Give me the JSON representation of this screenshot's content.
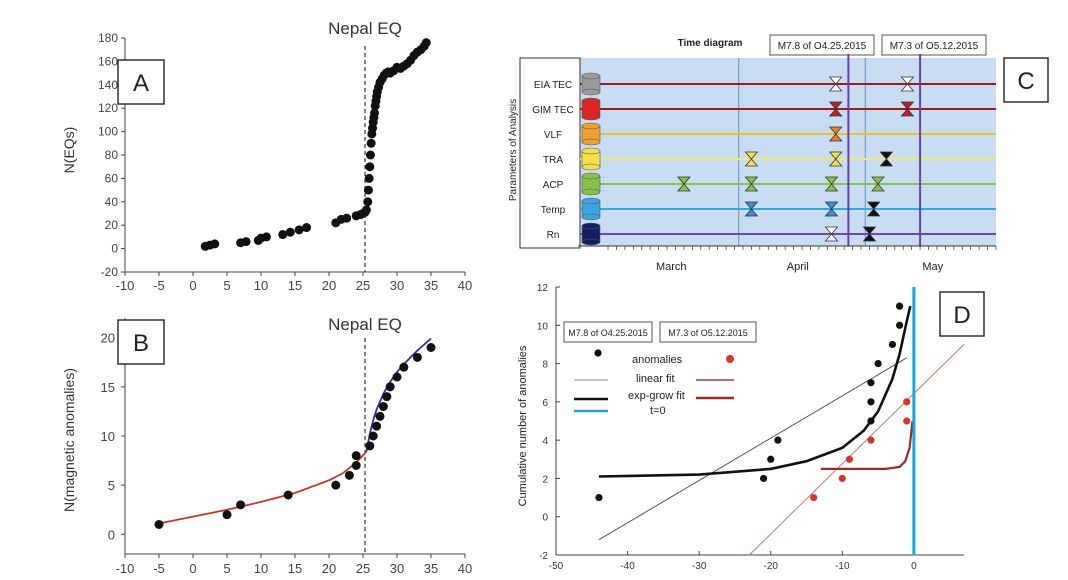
{
  "chart_data": [
    {
      "id": "A",
      "type": "scatter",
      "panel_label": "A",
      "title": "Nepal EQ",
      "xlabel": "",
      "ylabel": "N(EQs)",
      "xlim": [
        -10,
        40
      ],
      "ylim": [
        -20,
        180
      ],
      "xticks": [
        -10,
        -5,
        0,
        5,
        10,
        15,
        20,
        25,
        30,
        35,
        40
      ],
      "yticks": [
        -20,
        0,
        20,
        40,
        60,
        80,
        100,
        120,
        140,
        160,
        180
      ],
      "event_line_x": 25.3,
      "points": [
        [
          1.8,
          2
        ],
        [
          2.5,
          3
        ],
        [
          3.2,
          4
        ],
        [
          7,
          5
        ],
        [
          7.8,
          6
        ],
        [
          9.6,
          7
        ],
        [
          10,
          9
        ],
        [
          10.8,
          10
        ],
        [
          13.2,
          12
        ],
        [
          14.3,
          14
        ],
        [
          15.6,
          16
        ],
        [
          16.7,
          18
        ],
        [
          21,
          22
        ],
        [
          21.8,
          25
        ],
        [
          22.6,
          26
        ],
        [
          24,
          28
        ],
        [
          24.6,
          29
        ],
        [
          25,
          30
        ],
        [
          25.3,
          31
        ],
        [
          25.5,
          33
        ],
        [
          25.7,
          40
        ],
        [
          25.8,
          50
        ],
        [
          25.9,
          60
        ],
        [
          26,
          70
        ],
        [
          26.1,
          80
        ],
        [
          26.2,
          90
        ],
        [
          26.3,
          98
        ],
        [
          26.4,
          103
        ],
        [
          26.5,
          108
        ],
        [
          26.6,
          112
        ],
        [
          26.7,
          116
        ],
        [
          26.8,
          122
        ],
        [
          26.9,
          126
        ],
        [
          27,
          130
        ],
        [
          27.1,
          134
        ],
        [
          27.3,
          138
        ],
        [
          27.5,
          142
        ],
        [
          27.8,
          145
        ],
        [
          28.1,
          148
        ],
        [
          28.4,
          150
        ],
        [
          28.7,
          151
        ],
        [
          29,
          150
        ],
        [
          29.5,
          152
        ],
        [
          30,
          155
        ],
        [
          30.5,
          154
        ],
        [
          31,
          156
        ],
        [
          31.5,
          158
        ],
        [
          32,
          161
        ],
        [
          32.5,
          165
        ],
        [
          33,
          168
        ],
        [
          33.5,
          170
        ],
        [
          34,
          173
        ],
        [
          34.3,
          176
        ]
      ]
    },
    {
      "id": "B",
      "type": "scatter",
      "panel_label": "B",
      "title": "Nepal EQ",
      "xlabel": "",
      "ylabel": "N(magnetic anomalies)",
      "xlim": [
        -10,
        40
      ],
      "ylim": [
        -2,
        22
      ],
      "xticks": [
        -10,
        -5,
        0,
        5,
        10,
        15,
        20,
        25,
        30,
        35,
        40
      ],
      "yticks": [
        0,
        5,
        10,
        15,
        20
      ],
      "event_line_x": 25.3,
      "points": [
        [
          -5,
          1
        ],
        [
          5,
          2
        ],
        [
          7,
          3
        ],
        [
          14,
          4
        ],
        [
          21,
          5
        ],
        [
          23,
          6
        ],
        [
          24,
          7
        ],
        [
          24,
          8
        ],
        [
          26,
          9
        ],
        [
          26.5,
          10
        ],
        [
          27,
          11
        ],
        [
          27.5,
          12
        ],
        [
          28,
          13
        ],
        [
          28.5,
          14
        ],
        [
          29,
          15
        ],
        [
          30,
          16
        ],
        [
          31,
          17
        ],
        [
          33,
          18
        ],
        [
          35,
          19
        ]
      ],
      "fit_red": {
        "color": "#c0392b",
        "points": [
          [
            -5,
            1.1
          ],
          [
            0,
            1.8
          ],
          [
            5,
            2.5
          ],
          [
            10,
            3.3
          ],
          [
            15,
            4.2
          ],
          [
            20,
            5.5
          ],
          [
            22,
            6.2
          ],
          [
            24,
            7.3
          ],
          [
            25.5,
            8.4
          ]
        ]
      },
      "fit_blue": {
        "color": "#2e2ea8",
        "points": [
          [
            25.5,
            8.4
          ],
          [
            26,
            10.2
          ],
          [
            26.5,
            11.6
          ],
          [
            27,
            12.7
          ],
          [
            28,
            14.3
          ],
          [
            29,
            15.5
          ],
          [
            30,
            16.5
          ],
          [
            31,
            17.3
          ],
          [
            32,
            18
          ],
          [
            33,
            18.7
          ],
          [
            34,
            19.3
          ],
          [
            35,
            19.9
          ]
        ]
      }
    },
    {
      "id": "C",
      "type": "timeline",
      "panel_label": "C",
      "title": "Time diagram",
      "ylabel": "Parameters of Analysis",
      "event_labels": [
        "M7.8 of O4.25.2015",
        "M7.3 of O5.12.2015"
      ],
      "months": [
        "March",
        "April",
        "May"
      ],
      "rows": [
        {
          "name": "EIA TEC",
          "color": "#9a9a9a",
          "line_color": "#9b1c1c",
          "markers": [
            {
              "day": 55,
              "fill": "#ffffff"
            },
            {
              "day": 72,
              "fill": "#ffffff"
            }
          ]
        },
        {
          "name": "GIM TEC",
          "color": "#e02424",
          "line_color": "#9b1c1c",
          "markers": [
            {
              "day": 55,
              "fill": "#c0202a"
            },
            {
              "day": 72,
              "fill": "#c0202a"
            }
          ]
        },
        {
          "name": "VLF",
          "color": "#f0a030",
          "line_color": "#f0c020",
          "markers": [
            {
              "day": 55,
              "fill": "#e08030"
            }
          ]
        },
        {
          "name": "TRA",
          "color": "#f4e04a",
          "line_color": "#f4ea60",
          "markers": [
            {
              "day": 35,
              "fill": "#f4e04a"
            },
            {
              "day": 55,
              "fill": "#f4e04a"
            },
            {
              "day": 67,
              "fill": "#111111"
            }
          ]
        },
        {
          "name": "ACP",
          "color": "#8ac04a",
          "line_color": "#8ac04a",
          "markers": [
            {
              "day": 19,
              "fill": "#8ac04a"
            },
            {
              "day": 35,
              "fill": "#8ac04a"
            },
            {
              "day": 54,
              "fill": "#8ac04a"
            },
            {
              "day": 65,
              "fill": "#8ac04a"
            }
          ]
        },
        {
          "name": "Temp",
          "color": "#3ba4dc",
          "line_color": "#3ba4dc",
          "markers": [
            {
              "day": 35,
              "fill": "#3b8ee0"
            },
            {
              "day": 54,
              "fill": "#3b8ee0"
            },
            {
              "day": 64,
              "fill": "#111111"
            }
          ]
        },
        {
          "name": "Rn",
          "color": "#14205e",
          "line_color": "#7048b0",
          "markers": [
            {
              "day": 54,
              "fill": "#ffffff"
            },
            {
              "day": 63,
              "fill": "#111111"
            }
          ]
        }
      ],
      "event_days": [
        58,
        75
      ]
    },
    {
      "id": "D",
      "type": "scatter",
      "panel_label": "D",
      "xlabel": "",
      "ylabel": "Cumulative number of anomalies",
      "xlim": [
        -50,
        7
      ],
      "ylim": [
        -2,
        12
      ],
      "xticks": [
        -50,
        -40,
        -30,
        -20,
        -10,
        0
      ],
      "yticks": [
        -2,
        0,
        2,
        4,
        6,
        8,
        10,
        12
      ],
      "event_labels": [
        "M7.8 of O4.25.2015",
        "M7.3 of O5.12.2015"
      ],
      "legend": {
        "anomalies": "anomalies",
        "linear_fit": "linear  fit",
        "exp_fit": "exp-grow fit",
        "t0": "t=0"
      },
      "black_points": [
        [
          -44,
          1
        ],
        [
          -21,
          2
        ],
        [
          -20,
          3
        ],
        [
          -19,
          4
        ],
        [
          -6,
          5
        ],
        [
          -6,
          6
        ],
        [
          -6,
          7
        ],
        [
          -5,
          8
        ],
        [
          -3,
          9
        ],
        [
          -2,
          10
        ],
        [
          -2,
          11
        ]
      ],
      "red_points": [
        [
          -14,
          1
        ],
        [
          -10,
          2
        ],
        [
          -9,
          3
        ],
        [
          -6,
          4
        ],
        [
          -1,
          5
        ],
        [
          -1,
          6
        ]
      ],
      "black_linear": [
        [
          -44,
          -1.2
        ],
        [
          -1,
          8.3
        ]
      ],
      "red_linear": [
        [
          -23,
          -2
        ],
        [
          7,
          9
        ]
      ],
      "black_exp": [
        [
          -44,
          2.1
        ],
        [
          -30,
          2.2
        ],
        [
          -20,
          2.5
        ],
        [
          -15,
          2.9
        ],
        [
          -10,
          3.6
        ],
        [
          -7,
          4.5
        ],
        [
          -5,
          5.5
        ],
        [
          -3,
          7.2
        ],
        [
          -2,
          8.5
        ],
        [
          -1,
          10.2
        ],
        [
          -0.5,
          11
        ]
      ],
      "red_exp": [
        [
          -13,
          2.5
        ],
        [
          -4,
          2.5
        ],
        [
          -2,
          2.6
        ],
        [
          -1.2,
          2.9
        ],
        [
          -0.6,
          3.6
        ],
        [
          -0.2,
          5
        ]
      ],
      "t0_x": 0
    }
  ]
}
